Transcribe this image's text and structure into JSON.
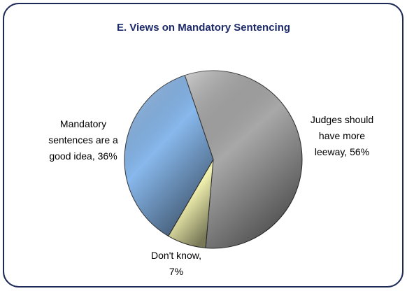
{
  "chart_data": {
    "type": "pie",
    "title": "E. Views on Mandatory Sentencing",
    "values": [
      56,
      7,
      36
    ],
    "value_labels": [
      "Judges should have more leeway, 56%",
      "Don't know, 7%",
      "Mandatory sentences are a good idea, 36%"
    ],
    "colors": [
      "#a8a8a8",
      "#f2f2b0",
      "#88b8ec"
    ]
  }
}
